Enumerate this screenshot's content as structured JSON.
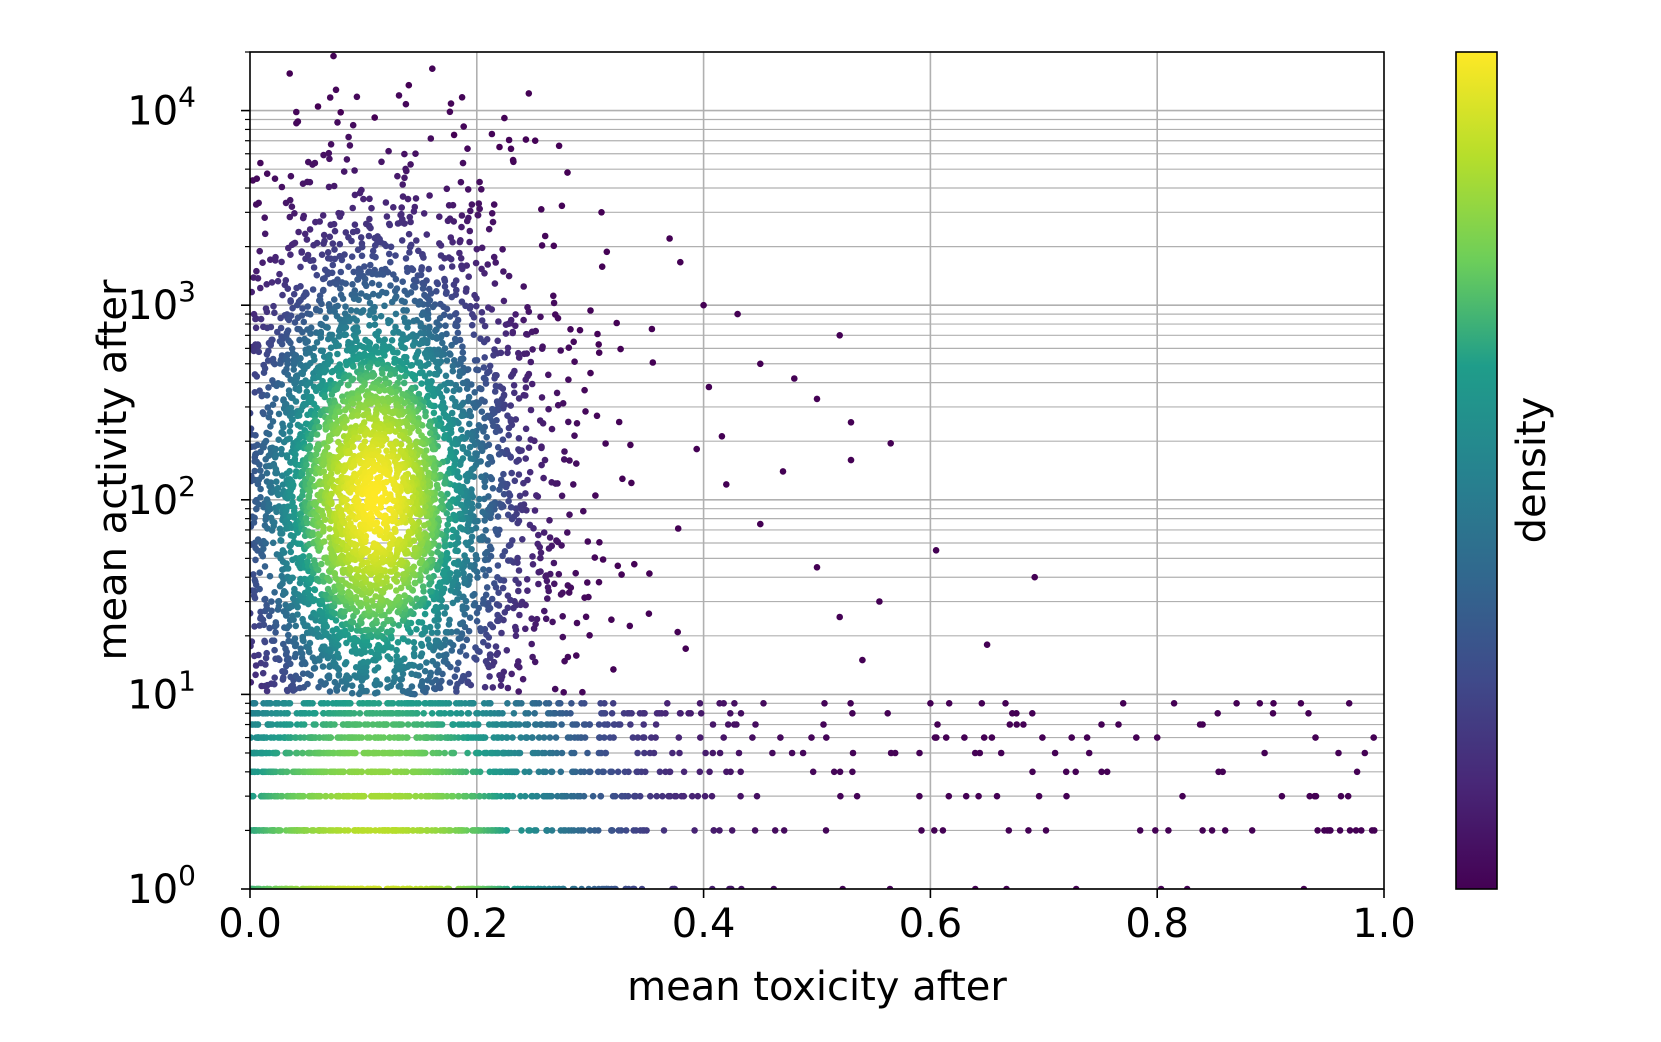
{
  "chart_data": {
    "type": "scatter",
    "title": "",
    "xlabel": "mean toxicity after",
    "ylabel": "mean activity after",
    "colorbar_label": "density",
    "colormap": "viridis",
    "colormap_colors": [
      "#440154",
      "#482777",
      "#3f4a8a",
      "#31688e",
      "#26838f",
      "#1f9d8a",
      "#6cce5a",
      "#b6de2b",
      "#fee825"
    ],
    "xlim": [
      0.0,
      1.0
    ],
    "ylim": [
      1,
      20000
    ],
    "yscale": "log",
    "grid": true,
    "x_ticks": [
      "0.0",
      "0.2",
      "0.4",
      "0.6",
      "0.8",
      "1.0"
    ],
    "x_tick_values": [
      0.0,
      0.2,
      0.4,
      0.6,
      0.8,
      1.0
    ],
    "y_ticks": [
      {
        "base": "10",
        "exp": "0",
        "value": 1
      },
      {
        "base": "10",
        "exp": "1",
        "value": 10
      },
      {
        "base": "10",
        "exp": "2",
        "value": 100
      },
      {
        "base": "10",
        "exp": "3",
        "value": 1000
      },
      {
        "base": "10",
        "exp": "4",
        "value": 10000
      }
    ],
    "density_model": {
      "dense_core": {
        "x_center": 0.11,
        "y_center": 100,
        "x_spread": 0.07,
        "log10_y_spread": 0.75
      },
      "integer_rows": [
        1,
        2,
        3,
        4,
        5,
        6,
        7,
        8,
        9
      ]
    },
    "outliers": [
      {
        "x": 0.035,
        "y": 15500
      },
      {
        "x": 0.14,
        "y": 13500
      },
      {
        "x": 0.06,
        "y": 10500
      },
      {
        "x": 0.08,
        "y": 9800
      },
      {
        "x": 0.11,
        "y": 9200
      },
      {
        "x": 0.18,
        "y": 7500
      },
      {
        "x": 0.22,
        "y": 6500
      },
      {
        "x": 0.28,
        "y": 4800
      },
      {
        "x": 0.31,
        "y": 3000
      },
      {
        "x": 0.37,
        "y": 2200
      },
      {
        "x": 0.4,
        "y": 1000
      },
      {
        "x": 0.43,
        "y": 900
      },
      {
        "x": 0.52,
        "y": 700
      },
      {
        "x": 0.45,
        "y": 500
      },
      {
        "x": 0.48,
        "y": 420
      },
      {
        "x": 0.5,
        "y": 330
      },
      {
        "x": 0.53,
        "y": 250
      },
      {
        "x": 0.565,
        "y": 195
      },
      {
        "x": 0.53,
        "y": 160
      },
      {
        "x": 0.47,
        "y": 140
      },
      {
        "x": 0.42,
        "y": 120
      },
      {
        "x": 0.45,
        "y": 75
      },
      {
        "x": 0.5,
        "y": 45
      },
      {
        "x": 0.555,
        "y": 30
      },
      {
        "x": 0.605,
        "y": 55
      },
      {
        "x": 0.692,
        "y": 40
      },
      {
        "x": 0.65,
        "y": 18
      },
      {
        "x": 0.52,
        "y": 25
      },
      {
        "x": 0.54,
        "y": 15
      },
      {
        "x": 0.6,
        "y": 9
      },
      {
        "x": 0.77,
        "y": 9
      },
      {
        "x": 0.87,
        "y": 9
      },
      {
        "x": 0.84,
        "y": 7
      },
      {
        "x": 0.8,
        "y": 6
      },
      {
        "x": 0.74,
        "y": 5
      },
      {
        "x": 0.67,
        "y": 7
      },
      {
        "x": 0.63,
        "y": 6
      },
      {
        "x": 0.71,
        "y": 5
      },
      {
        "x": 0.91,
        "y": 3
      },
      {
        "x": 0.94,
        "y": 3
      },
      {
        "x": 0.95,
        "y": 2
      },
      {
        "x": 0.97,
        "y": 2
      },
      {
        "x": 0.98,
        "y": 2
      },
      {
        "x": 0.785,
        "y": 2
      },
      {
        "x": 0.84,
        "y": 2
      },
      {
        "x": 0.86,
        "y": 2
      },
      {
        "x": 0.72,
        "y": 3
      },
      {
        "x": 0.69,
        "y": 4
      }
    ]
  }
}
